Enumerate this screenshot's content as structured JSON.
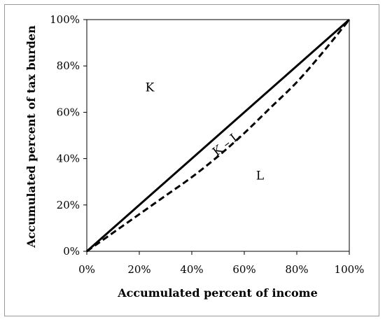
{
  "chart_data": {
    "type": "line",
    "xlabel": "Accumulated percent of income",
    "ylabel": "Accumulated percent of tax burden",
    "xlim": [
      0,
      100
    ],
    "ylim": [
      0,
      100
    ],
    "x_ticks": [
      "0%",
      "20%",
      "40%",
      "60%",
      "80%",
      "100%"
    ],
    "y_ticks": [
      "0%",
      "20%",
      "40%",
      "60%",
      "80%",
      "100%"
    ],
    "grid": false,
    "legend": "none",
    "series": [
      {
        "style": "solid",
        "x": [
          0,
          100
        ],
        "y": [
          0,
          100
        ]
      },
      {
        "style": "dashed",
        "x": [
          0,
          10,
          20,
          30,
          40,
          50,
          60,
          70,
          80,
          90,
          100
        ],
        "y": [
          0,
          8,
          16,
          24,
          32,
          41,
          51,
          62,
          73,
          86,
          100
        ]
      }
    ],
    "annotations": [
      {
        "text": "K",
        "x": 24,
        "y": 69
      },
      {
        "text": "K – L",
        "x": 54,
        "y": 45
      },
      {
        "text": "L",
        "x": 66,
        "y": 31
      }
    ],
    "colors": {
      "line": "#000000",
      "frame": "#9a9a9a"
    }
  }
}
